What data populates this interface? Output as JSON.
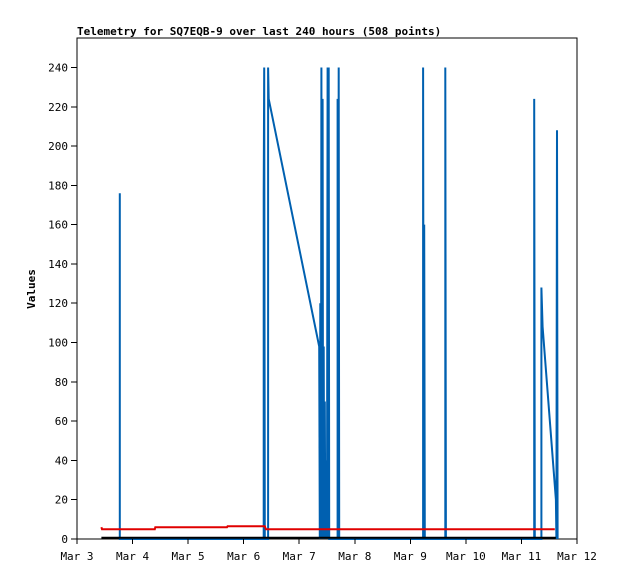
{
  "chart_data": {
    "type": "line",
    "title": "Telemetry for SQ7EQB-9 over last 240 hours (508 points)",
    "ylabel": "Values",
    "xlabel": "",
    "xlim": [
      3.0,
      12.0
    ],
    "ylim": [
      0,
      255
    ],
    "x_ticks": [
      {
        "label": "Mar 3",
        "x": 3.0
      },
      {
        "label": "Mar 4",
        "x": 4.0
      },
      {
        "label": "Mar 5",
        "x": 5.0
      },
      {
        "label": "Mar 6",
        "x": 6.0
      },
      {
        "label": "Mar 7",
        "x": 7.0
      },
      {
        "label": "Mar 8",
        "x": 8.0
      },
      {
        "label": "Mar 9",
        "x": 9.0
      },
      {
        "label": "Mar 10",
        "x": 10.0
      },
      {
        "label": "Mar 11",
        "x": 11.0
      },
      {
        "label": "Mar 12",
        "x": 12.0
      }
    ],
    "y_ticks": [
      0,
      20,
      40,
      60,
      80,
      100,
      120,
      140,
      160,
      180,
      200,
      220,
      240
    ],
    "grid": false,
    "series": [
      {
        "color": "#0060b0",
        "points": [
          [
            3.77,
            0
          ],
          [
            3.77,
            176
          ],
          [
            3.77,
            0
          ],
          [
            6.36,
            0
          ],
          [
            6.36,
            176
          ],
          [
            6.37,
            240
          ],
          [
            6.38,
            0
          ],
          [
            6.44,
            0
          ],
          [
            6.44,
            240
          ],
          [
            6.45,
            224
          ],
          [
            7.36,
            98
          ],
          [
            7.37,
            0
          ],
          [
            7.38,
            120
          ],
          [
            7.39,
            0
          ],
          [
            7.4,
            240
          ],
          [
            7.41,
            0
          ],
          [
            7.42,
            224
          ],
          [
            7.43,
            0
          ],
          [
            7.44,
            98
          ],
          [
            7.45,
            0
          ],
          [
            7.46,
            70
          ],
          [
            7.47,
            0
          ],
          [
            7.49,
            40
          ],
          [
            7.5,
            0
          ],
          [
            7.51,
            240
          ],
          [
            7.52,
            0
          ],
          [
            7.53,
            240
          ],
          [
            7.54,
            0
          ],
          [
            7.69,
            0
          ],
          [
            7.69,
            224
          ],
          [
            7.7,
            0
          ],
          [
            7.71,
            240
          ],
          [
            7.72,
            0
          ],
          [
            9.23,
            0
          ],
          [
            9.23,
            240
          ],
          [
            9.24,
            0
          ],
          [
            9.25,
            160
          ],
          [
            9.26,
            0
          ],
          [
            9.63,
            0
          ],
          [
            9.63,
            240
          ],
          [
            9.64,
            0
          ],
          [
            11.23,
            0
          ],
          [
            11.23,
            224
          ],
          [
            11.24,
            0
          ],
          [
            11.36,
            0
          ],
          [
            11.36,
            128
          ],
          [
            11.38,
            108
          ],
          [
            11.62,
            20
          ],
          [
            11.63,
            0
          ],
          [
            11.64,
            208
          ],
          [
            11.65,
            0
          ]
        ]
      },
      {
        "color": "#e00000",
        "points": [
          [
            3.44,
            6
          ],
          [
            3.45,
            5
          ],
          [
            4.4,
            5
          ],
          [
            4.41,
            6
          ],
          [
            5.7,
            6
          ],
          [
            5.71,
            6.5
          ],
          [
            6.38,
            6.5
          ],
          [
            6.4,
            5
          ],
          [
            11.6,
            5
          ]
        ]
      },
      {
        "color": "#000000",
        "points": [
          [
            3.44,
            0.6
          ],
          [
            11.62,
            0.6
          ]
        ]
      }
    ]
  }
}
